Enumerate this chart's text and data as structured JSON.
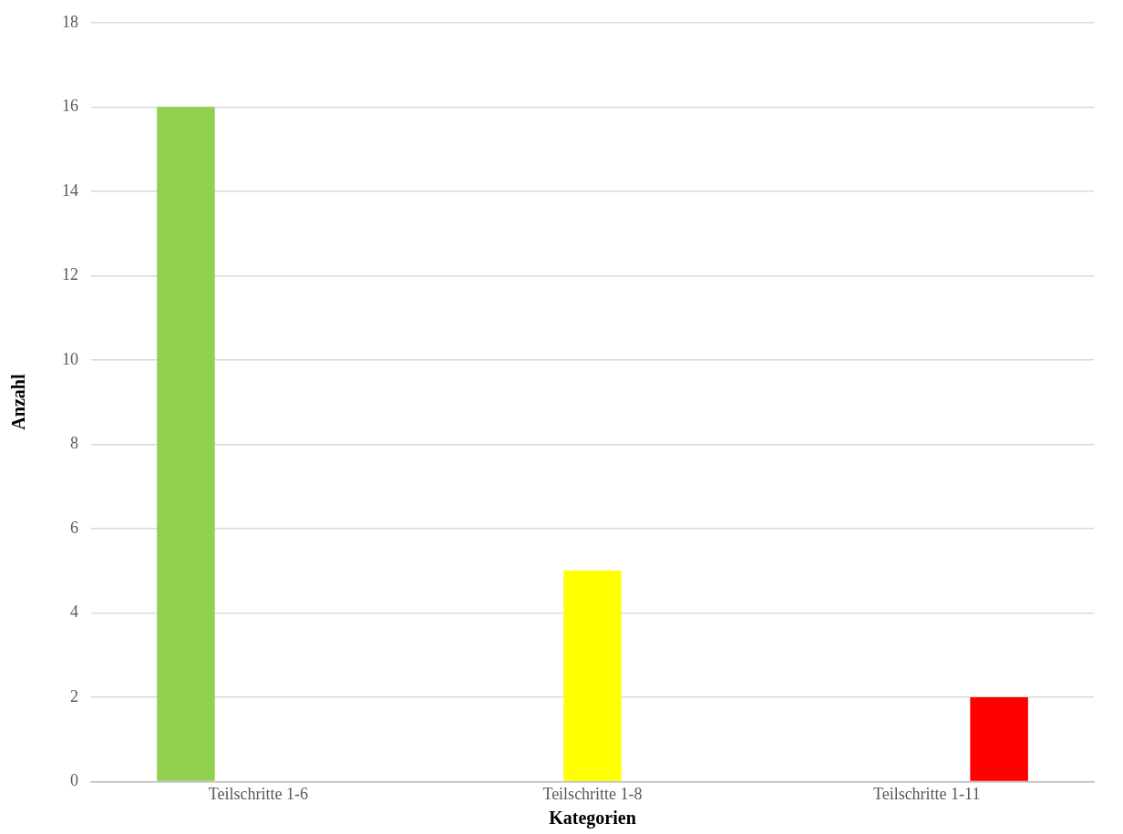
{
  "chart_data": {
    "type": "bar",
    "xlabel": "Kategorien",
    "ylabel": "Anzahl",
    "categories": [
      "Teilschritte 1-6",
      "Teilschritte 1-8",
      "Teilschritte 1-11"
    ],
    "series": [
      {
        "color": "#92d050",
        "values": [
          16,
          null,
          null
        ]
      },
      {
        "color": "#ffff00",
        "values": [
          null,
          5,
          null
        ]
      },
      {
        "color": "#ff0000",
        "values": [
          null,
          null,
          2
        ]
      }
    ],
    "ylim": [
      0,
      18
    ],
    "yticks": [
      0,
      2,
      4,
      6,
      8,
      10,
      12,
      14,
      16,
      18
    ],
    "grid": "y",
    "legend": false
  }
}
